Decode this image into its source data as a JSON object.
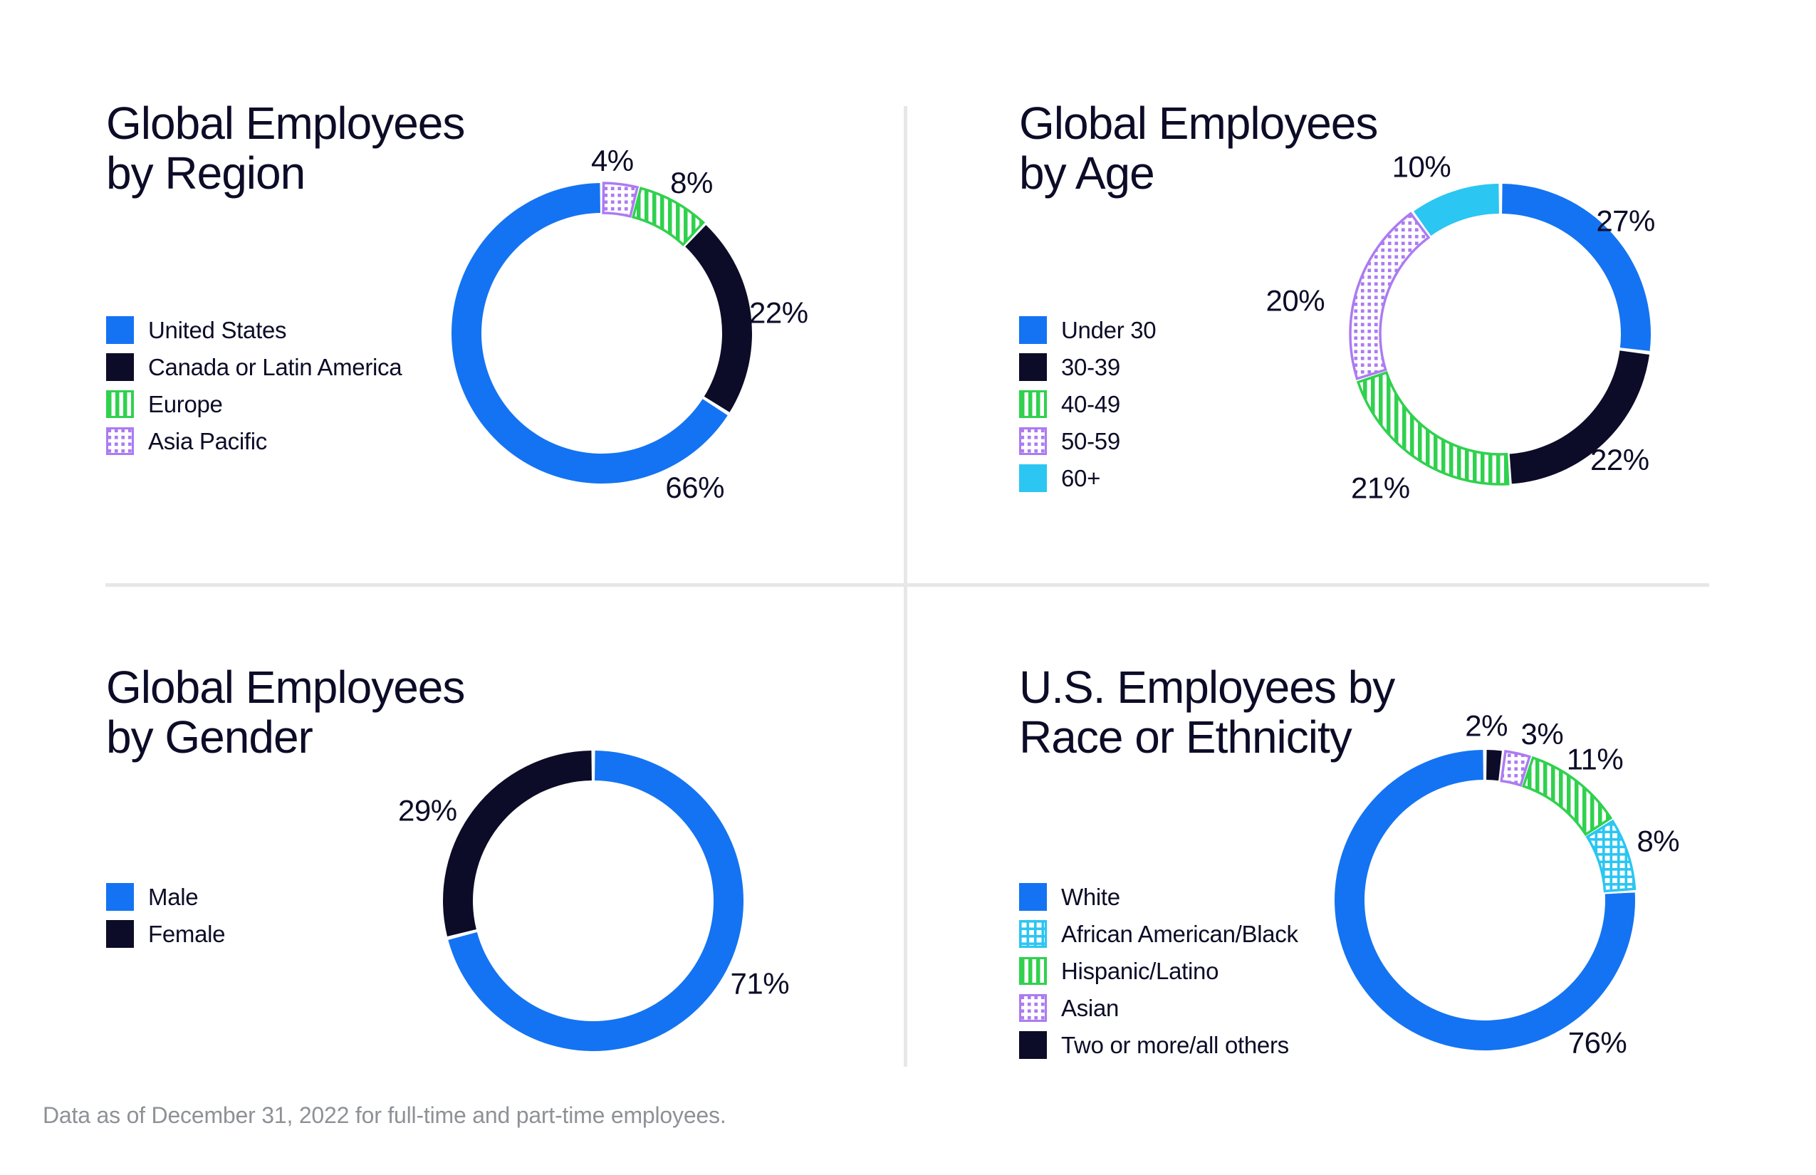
{
  "page": {
    "background": "#FFFFFF",
    "footer": "Data as of December 31, 2022 for full-time and part-time employees."
  },
  "colors": {
    "title": "#0C0C28",
    "footer_text": "#8E9196",
    "divider": "#E7E7E7",
    "blue": "#1473F2",
    "navy": "#0C0C28",
    "cyan": "#2BC6F2",
    "green": "#30D14E",
    "purple": "#AC7BF2"
  },
  "styles": {
    "solid-blue": {
      "fill": "#1473F2"
    },
    "solid-navy": {
      "fill": "#0C0C28"
    },
    "solid-cyan": {
      "fill": "#2BC6F2"
    },
    "stripes-green": {
      "pattern": "stripes-green",
      "accent": "#30D14E"
    },
    "dots-purple": {
      "pattern": "dots-purple",
      "accent": "#AC7BF2"
    },
    "grid-cyan": {
      "pattern": "grid-cyan",
      "accent": "#2BC6F2"
    }
  },
  "chart_data": [
    {
      "id": "region",
      "type": "pie",
      "variant": "donut",
      "title_lines": [
        "Global Employees",
        "by Region"
      ],
      "legend_position": "left",
      "direction": "ccw",
      "slices": [
        {
          "label": "United States",
          "value": 66,
          "pct": "66%",
          "style": "solid-blue",
          "label_angle": 148.9,
          "label_dist": 253
        },
        {
          "label": "Canada or Latin America",
          "value": 22,
          "pct": "22%",
          "style": "solid-navy",
          "label_angle": 83.3,
          "label_dist": 250
        },
        {
          "label": "Europe",
          "value": 8,
          "pct": "8%",
          "style": "stripes-green",
          "label_angle": 30.8,
          "label_dist": 246
        },
        {
          "label": "Asia Pacific",
          "value": 4,
          "pct": "4%",
          "style": "dots-purple",
          "label_angle": 3.5,
          "label_dist": 243
        }
      ]
    },
    {
      "id": "age",
      "type": "pie",
      "variant": "donut",
      "title_lines": [
        "Global Employees",
        "by Age"
      ],
      "legend_position": "left",
      "direction": "cw",
      "slices": [
        {
          "label": "Under 30",
          "value": 27,
          "pct": "27%",
          "style": "solid-blue",
          "label_angle": 47.8,
          "label_dist": 237
        },
        {
          "label": "30-39",
          "value": 22,
          "pct": "22%",
          "style": "solid-navy",
          "label_angle": 136.5,
          "label_dist": 243
        },
        {
          "label": "40-49",
          "value": 21,
          "pct": "21%",
          "style": "stripes-green",
          "label_angle": 218,
          "label_dist": 274
        },
        {
          "label": "50-59",
          "value": 20,
          "pct": "20%",
          "style": "dots-purple",
          "label_angle": 279.3,
          "label_dist": 292
        },
        {
          "label": "60+",
          "value": 10,
          "pct": "10%",
          "style": "solid-cyan",
          "label_angle": 334.7,
          "label_dist": 260
        }
      ]
    },
    {
      "id": "gender",
      "type": "pie",
      "variant": "donut",
      "title_lines": [
        "Global Employees",
        "by Gender"
      ],
      "legend_position": "left",
      "direction": "cw",
      "slices": [
        {
          "label": "Male",
          "value": 71,
          "pct": "71%",
          "style": "solid-blue",
          "label_angle": 116.4,
          "label_dist": 261
        },
        {
          "label": "Female",
          "value": 29,
          "pct": "29%",
          "style": "solid-navy",
          "label_angle": 298.6,
          "label_dist": 265
        }
      ]
    },
    {
      "id": "race",
      "type": "pie",
      "variant": "donut",
      "title_lines": [
        "U.S. Employees by",
        "Race or Ethnicity"
      ],
      "legend_position": "left",
      "direction": "ccw",
      "slices": [
        {
          "label": "White",
          "value": 76,
          "pct": "76%",
          "style": "solid-blue",
          "label_angle": 141.7,
          "label_dist": 255
        },
        {
          "label": "African American/Black",
          "value": 8,
          "pct": "8%",
          "style": "grid-cyan",
          "label_angle": 71.2,
          "label_dist": 257
        },
        {
          "label": "Hispanic/Latino",
          "value": 11,
          "pct": "11%",
          "style": "stripes-green",
          "label_angle": 38,
          "label_dist": 251
        },
        {
          "label": "Asian",
          "value": 3,
          "pct": "3%",
          "style": "dots-purple",
          "label_angle": 19,
          "label_dist": 247
        },
        {
          "label": "Two or more/all others",
          "value": 2,
          "pct": "2%",
          "style": "solid-navy",
          "label_angle": 0.5,
          "label_dist": 245
        }
      ]
    }
  ]
}
